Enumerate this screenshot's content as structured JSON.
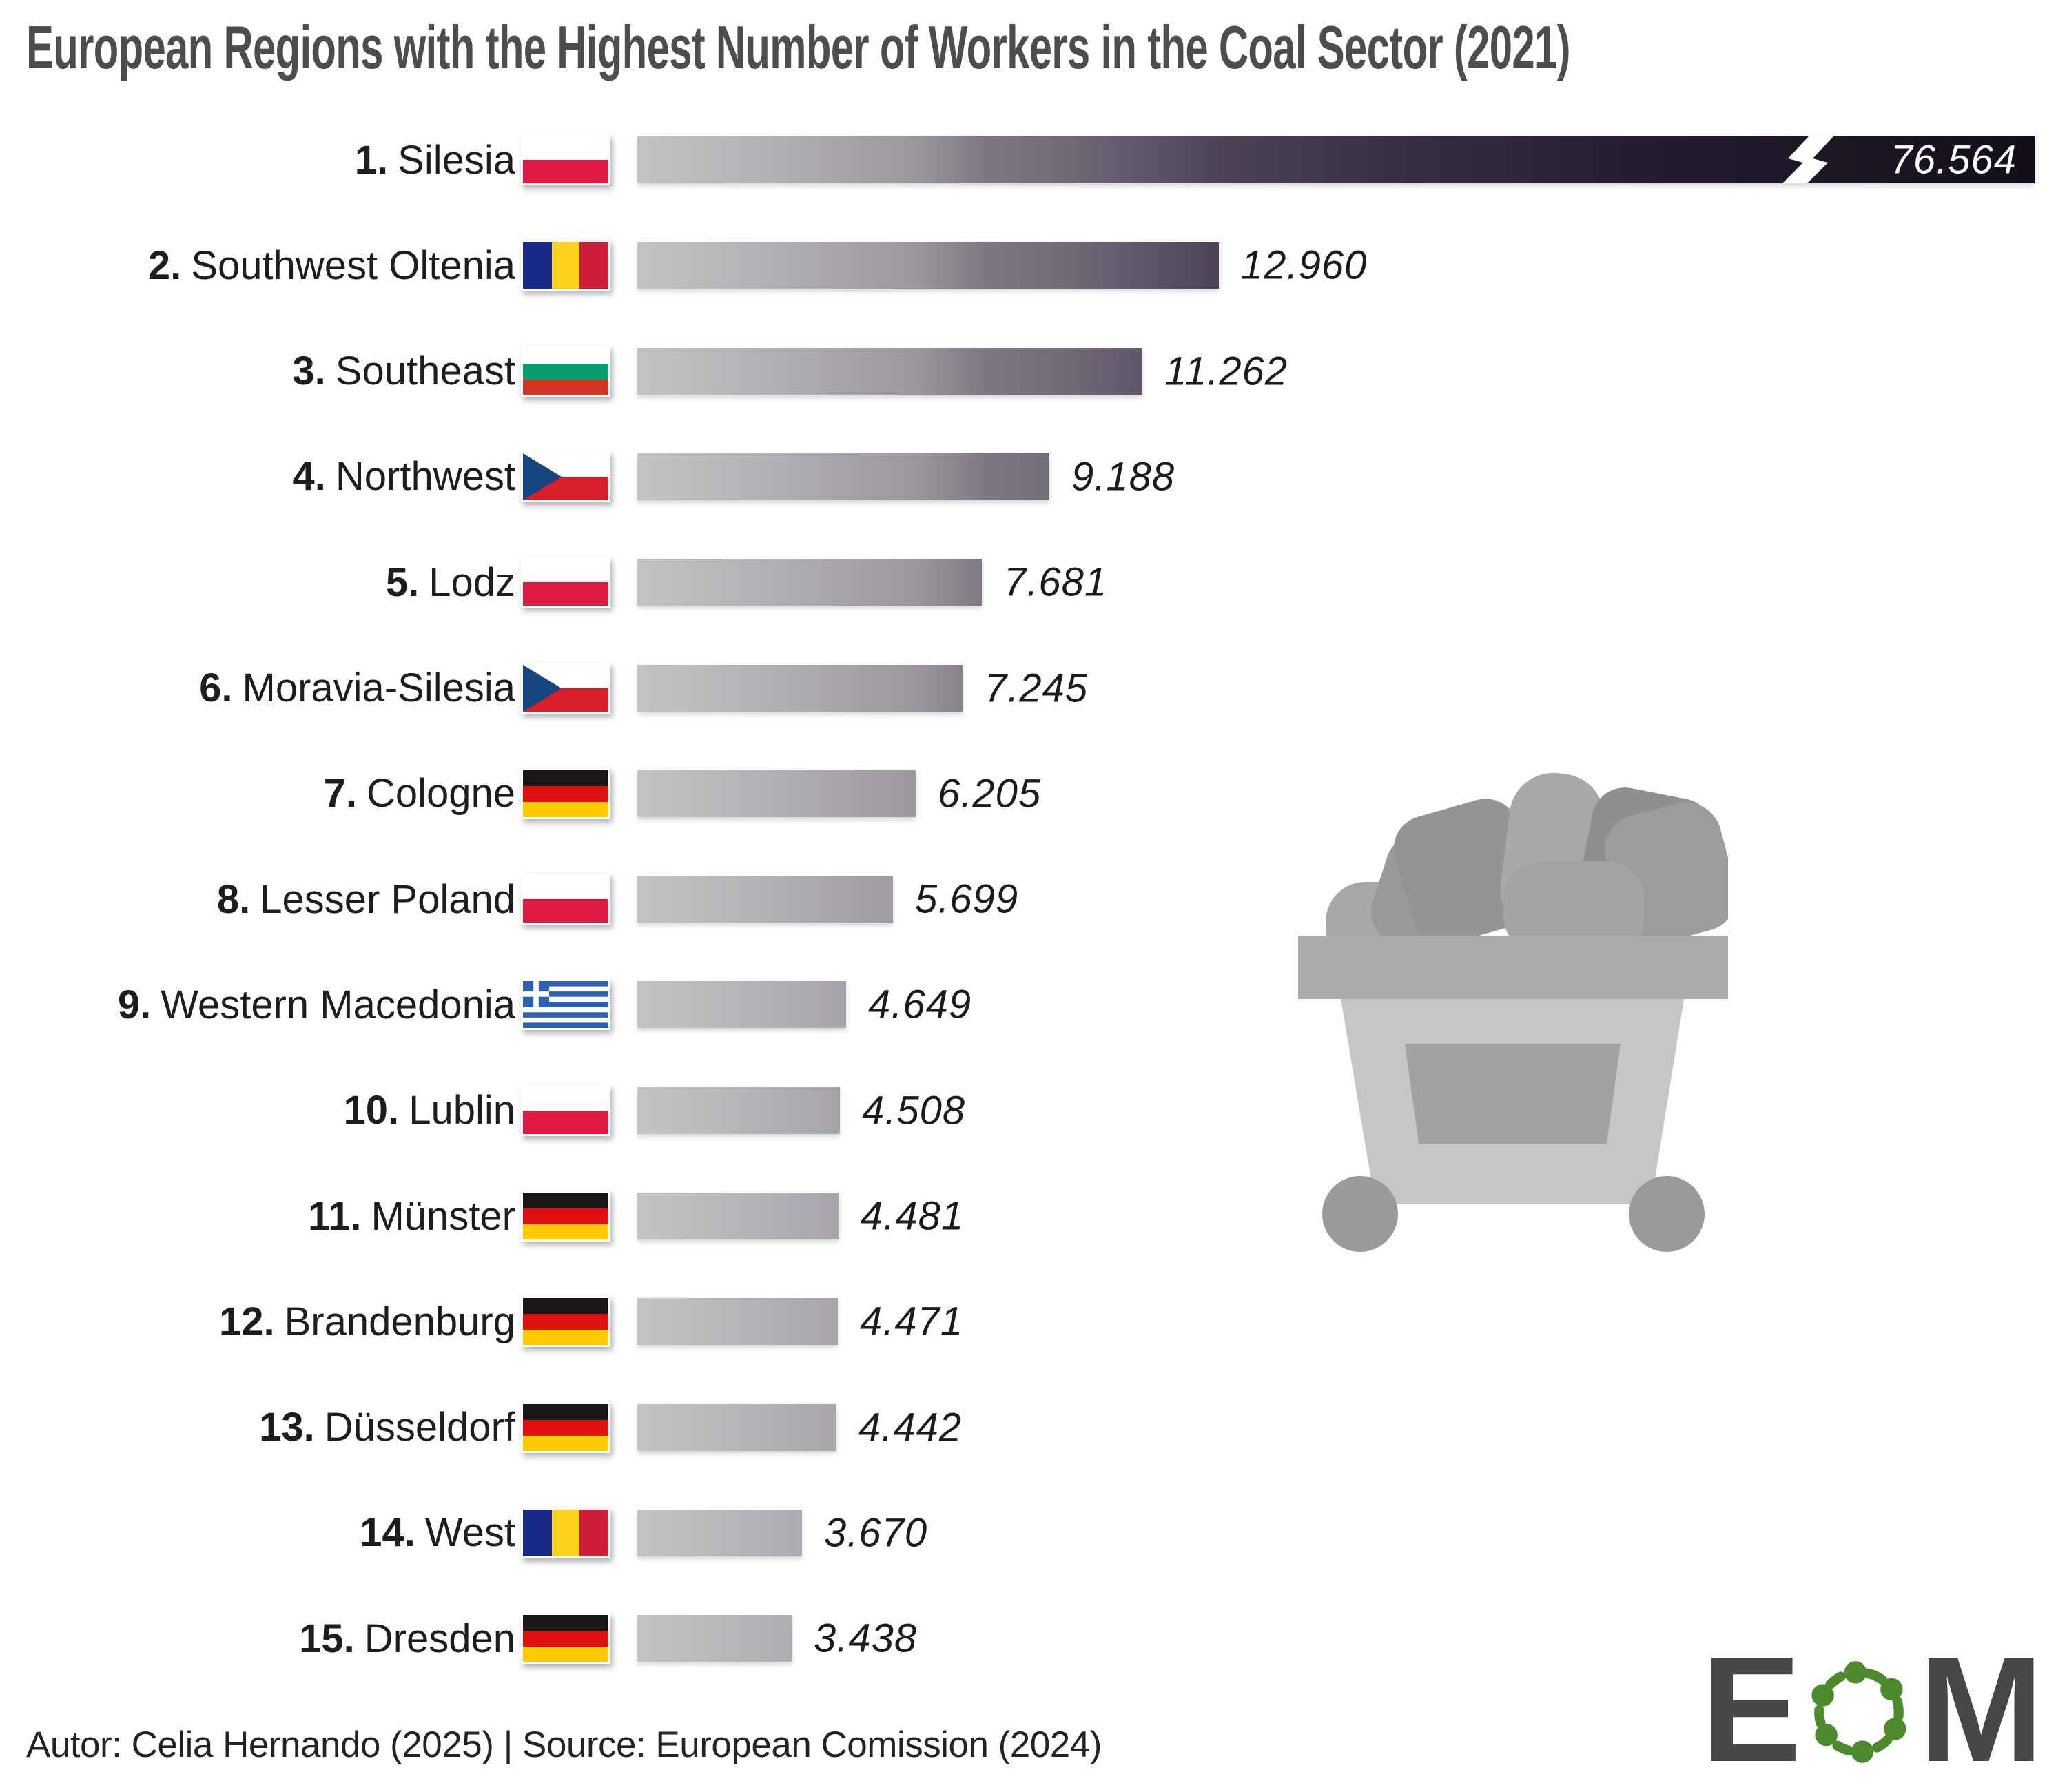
{
  "title": "European Regions with the Highest Number of Workers in the Coal Sector (2021)",
  "footer": {
    "credit": "Autor: Celia Hernando (2025) | Source: European Comission (2024)"
  },
  "logo": {
    "letter_e": "E",
    "letter_m": "M",
    "letter_color": "#474747",
    "ring_color": "#4d8a2e"
  },
  "illustration": {
    "name": "coal-cart",
    "grays": [
      "#ababab",
      "#c6c6c6",
      "#a2a2a2",
      "#9a9a9a",
      "#8f8f8f",
      "#a8a8a8"
    ]
  },
  "colors": {
    "bar_gradient_start": "#c4c3c4",
    "bar_gradient_end": "#130e1b",
    "title_text": "#4f4c4d",
    "label_text": "#1d1d1d",
    "value_text": "#1b1b1b",
    "value_text_on_dark": "#ffffff",
    "background": "#ffffff"
  },
  "chart_data": {
    "type": "bar",
    "orientation": "horizontal",
    "title": "European Regions with the Highest Number of Workers in the Coal Sector (2021)",
    "unit": "workers",
    "xlabel": "",
    "ylabel": "",
    "axis_hidden": true,
    "grid": false,
    "note": "First bar is truncated with a break symbol; value labels use dot as thousands separator",
    "categories": [
      "Silesia",
      "Southwest Oltenia",
      "Southeast",
      "Northwest",
      "Lodz",
      "Moravia-Silesia",
      "Cologne",
      "Lesser Poland",
      "Western Macedonia",
      "Lublin",
      "Münster",
      "Brandenburg",
      "Düsseldorf",
      "West",
      "Dresden"
    ],
    "values": [
      76564,
      12960,
      11262,
      9188,
      7681,
      7245,
      6205,
      5699,
      4649,
      4508,
      4481,
      4471,
      4442,
      3670,
      3438
    ],
    "bars": [
      {
        "rank": "1.",
        "region": "Silesia",
        "country": "Poland",
        "flag": "pl",
        "value": 76564,
        "value_label": "76.564",
        "truncated": true
      },
      {
        "rank": "2.",
        "region": "Southwest Oltenia",
        "country": "Romania",
        "flag": "ro",
        "value": 12960,
        "value_label": "12.960",
        "truncated": false
      },
      {
        "rank": "3.",
        "region": "Southeast",
        "country": "Bulgaria",
        "flag": "bg",
        "value": 11262,
        "value_label": "11.262",
        "truncated": false
      },
      {
        "rank": "4.",
        "region": "Northwest",
        "country": "Czech Republic",
        "flag": "cz",
        "value": 9188,
        "value_label": "9.188",
        "truncated": false
      },
      {
        "rank": "5.",
        "region": "Lodz",
        "country": "Poland",
        "flag": "pl",
        "value": 7681,
        "value_label": "7.681",
        "truncated": false
      },
      {
        "rank": "6.",
        "region": "Moravia-Silesia",
        "country": "Czech Republic",
        "flag": "cz",
        "value": 7245,
        "value_label": "7.245",
        "truncated": false
      },
      {
        "rank": "7.",
        "region": "Cologne",
        "country": "Germany",
        "flag": "de",
        "value": 6205,
        "value_label": "6.205",
        "truncated": false
      },
      {
        "rank": "8.",
        "region": "Lesser Poland",
        "country": "Poland",
        "flag": "pl",
        "value": 5699,
        "value_label": "5.699",
        "truncated": false
      },
      {
        "rank": "9.",
        "region": "Western Macedonia",
        "country": "Greece",
        "flag": "gr",
        "value": 4649,
        "value_label": "4.649",
        "truncated": false
      },
      {
        "rank": "10.",
        "region": "Lublin",
        "country": "Poland",
        "flag": "pl",
        "value": 4508,
        "value_label": "4.508",
        "truncated": false
      },
      {
        "rank": "11.",
        "region": "Münster",
        "country": "Germany",
        "flag": "de",
        "value": 4481,
        "value_label": "4.481",
        "truncated": false
      },
      {
        "rank": "12.",
        "region": "Brandenburg",
        "country": "Germany",
        "flag": "de",
        "value": 4471,
        "value_label": "4.471",
        "truncated": false
      },
      {
        "rank": "13.",
        "region": "Düsseldorf",
        "country": "Germany",
        "flag": "de",
        "value": 4442,
        "value_label": "4.442",
        "truncated": false
      },
      {
        "rank": "14.",
        "region": "West",
        "country": "Romania",
        "flag": "ro",
        "value": 3670,
        "value_label": "3.670",
        "truncated": false
      },
      {
        "rank": "15.",
        "region": "Dresden",
        "country": "Germany",
        "flag": "de",
        "value": 3438,
        "value_label": "3.438",
        "truncated": false
      }
    ]
  }
}
